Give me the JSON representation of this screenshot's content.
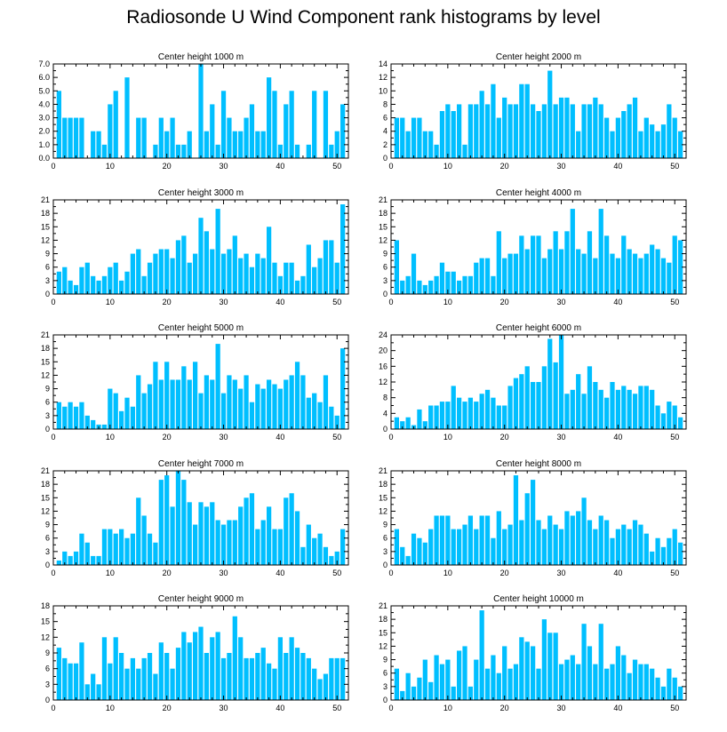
{
  "title": "Radiosonde U Wind Component rank histograms by level",
  "colors": {
    "bar": "#00bfff",
    "axis": "#000000",
    "background": "#ffffff"
  },
  "chart_data": [
    {
      "type": "bar",
      "title": "Center height 1000 m",
      "xlim": [
        0,
        52
      ],
      "ylim": [
        0,
        7
      ],
      "x_ticks": [
        0,
        10,
        20,
        30,
        40,
        50
      ],
      "y_ticks": [
        0,
        1,
        2,
        3,
        4,
        5,
        6,
        7
      ],
      "y_tick_labels": [
        "0.0",
        "1.0",
        "2.0",
        "3.0",
        "4.0",
        "5.0",
        "6.0",
        "7.0"
      ],
      "x": [
        1,
        2,
        3,
        4,
        5,
        6,
        7,
        8,
        9,
        10,
        11,
        12,
        13,
        14,
        15,
        16,
        17,
        18,
        19,
        20,
        21,
        22,
        23,
        24,
        25,
        26,
        27,
        28,
        29,
        30,
        31,
        32,
        33,
        34,
        35,
        36,
        37,
        38,
        39,
        40,
        41,
        42,
        43,
        44,
        45,
        46,
        47,
        48,
        49,
        50,
        51
      ],
      "values": [
        5,
        3,
        3,
        3,
        3,
        0,
        2,
        2,
        1,
        4,
        5,
        0,
        6,
        0,
        3,
        3,
        0,
        1,
        3,
        2,
        3,
        1,
        1,
        2,
        0,
        7,
        2,
        4,
        1,
        5,
        3,
        2,
        2,
        3,
        4,
        2,
        2,
        6,
        5,
        1,
        4,
        5,
        1,
        0,
        1,
        5,
        0,
        5,
        1,
        2,
        4
      ]
    },
    {
      "type": "bar",
      "title": "Center height 2000 m",
      "xlim": [
        0,
        52
      ],
      "ylim": [
        0,
        14
      ],
      "x_ticks": [
        0,
        10,
        20,
        30,
        40,
        50
      ],
      "y_ticks": [
        0,
        2,
        4,
        6,
        8,
        10,
        12,
        14
      ],
      "y_tick_labels": [
        "0",
        "2",
        "4",
        "6",
        "8",
        "10",
        "12",
        "14"
      ],
      "x": [
        1,
        2,
        3,
        4,
        5,
        6,
        7,
        8,
        9,
        10,
        11,
        12,
        13,
        14,
        15,
        16,
        17,
        18,
        19,
        20,
        21,
        22,
        23,
        24,
        25,
        26,
        27,
        28,
        29,
        30,
        31,
        32,
        33,
        34,
        35,
        36,
        37,
        38,
        39,
        40,
        41,
        42,
        43,
        44,
        45,
        46,
        47,
        48,
        49,
        50,
        51
      ],
      "values": [
        6,
        6,
        4,
        6,
        6,
        4,
        4,
        2,
        7,
        8,
        7,
        8,
        2,
        8,
        8,
        10,
        8,
        11,
        6,
        9,
        8,
        8,
        11,
        11,
        8,
        7,
        8,
        13,
        8,
        9,
        9,
        8,
        4,
        8,
        8,
        9,
        8,
        6,
        4,
        6,
        7,
        8,
        9,
        4,
        6,
        5,
        4,
        5,
        8,
        6,
        4
      ]
    },
    {
      "type": "bar",
      "title": "Center height 3000 m",
      "xlim": [
        0,
        52
      ],
      "ylim": [
        0,
        21
      ],
      "x_ticks": [
        0,
        10,
        20,
        30,
        40,
        50
      ],
      "y_ticks": [
        0,
        3,
        6,
        9,
        12,
        15,
        18,
        21
      ],
      "y_tick_labels": [
        "0",
        "3",
        "6",
        "9",
        "12",
        "15",
        "18",
        "21"
      ],
      "x": [
        1,
        2,
        3,
        4,
        5,
        6,
        7,
        8,
        9,
        10,
        11,
        12,
        13,
        14,
        15,
        16,
        17,
        18,
        19,
        20,
        21,
        22,
        23,
        24,
        25,
        26,
        27,
        28,
        29,
        30,
        31,
        32,
        33,
        34,
        35,
        36,
        37,
        38,
        39,
        40,
        41,
        42,
        43,
        44,
        45,
        46,
        47,
        48,
        49,
        50,
        51
      ],
      "values": [
        5,
        6,
        3,
        2,
        6,
        7,
        4,
        3,
        4,
        6,
        7,
        3,
        5,
        9,
        10,
        4,
        7,
        9,
        10,
        10,
        8,
        12,
        13,
        7,
        9,
        17,
        14,
        10,
        19,
        9,
        10,
        13,
        8,
        9,
        6,
        9,
        8,
        15,
        7,
        4,
        7,
        7,
        3,
        4,
        11,
        6,
        8,
        12,
        12,
        7,
        20
      ]
    },
    {
      "type": "bar",
      "title": "Center height 4000 m",
      "xlim": [
        0,
        52
      ],
      "ylim": [
        0,
        21
      ],
      "x_ticks": [
        0,
        10,
        20,
        30,
        40,
        50
      ],
      "y_ticks": [
        0,
        3,
        6,
        9,
        12,
        15,
        18,
        21
      ],
      "y_tick_labels": [
        "0",
        "3",
        "6",
        "9",
        "12",
        "15",
        "18",
        "21"
      ],
      "x": [
        1,
        2,
        3,
        4,
        5,
        6,
        7,
        8,
        9,
        10,
        11,
        12,
        13,
        14,
        15,
        16,
        17,
        18,
        19,
        20,
        21,
        22,
        23,
        24,
        25,
        26,
        27,
        28,
        29,
        30,
        31,
        32,
        33,
        34,
        35,
        36,
        37,
        38,
        39,
        40,
        41,
        42,
        43,
        44,
        45,
        46,
        47,
        48,
        49,
        50,
        51
      ],
      "values": [
        12,
        3,
        4,
        9,
        3,
        2,
        3,
        4,
        7,
        5,
        5,
        3,
        4,
        4,
        7,
        8,
        8,
        4,
        14,
        8,
        9,
        9,
        13,
        10,
        13,
        13,
        8,
        10,
        14,
        10,
        14,
        19,
        10,
        9,
        14,
        8,
        19,
        13,
        9,
        8,
        13,
        10,
        9,
        8,
        9,
        11,
        10,
        8,
        7,
        13,
        12
      ]
    },
    {
      "type": "bar",
      "title": "Center height 5000 m",
      "xlim": [
        0,
        52
      ],
      "ylim": [
        0,
        21
      ],
      "x_ticks": [
        0,
        10,
        20,
        30,
        40,
        50
      ],
      "y_ticks": [
        0,
        3,
        6,
        9,
        12,
        15,
        18,
        21
      ],
      "y_tick_labels": [
        "0",
        "3",
        "6",
        "9",
        "12",
        "15",
        "18",
        "21"
      ],
      "x": [
        1,
        2,
        3,
        4,
        5,
        6,
        7,
        8,
        9,
        10,
        11,
        12,
        13,
        14,
        15,
        16,
        17,
        18,
        19,
        20,
        21,
        22,
        23,
        24,
        25,
        26,
        27,
        28,
        29,
        30,
        31,
        32,
        33,
        34,
        35,
        36,
        37,
        38,
        39,
        40,
        41,
        42,
        43,
        44,
        45,
        46,
        47,
        48,
        49,
        50,
        51
      ],
      "values": [
        6,
        5,
        6,
        5,
        6,
        3,
        2,
        1,
        1,
        9,
        8,
        4,
        7,
        5,
        12,
        8,
        10,
        15,
        11,
        15,
        11,
        11,
        14,
        11,
        15,
        8,
        12,
        11,
        19,
        8,
        12,
        11,
        9,
        12,
        6,
        10,
        9,
        11,
        10,
        9,
        11,
        12,
        15,
        12,
        7,
        8,
        6,
        12,
        5,
        3,
        18
      ]
    },
    {
      "type": "bar",
      "title": "Center height 6000 m",
      "xlim": [
        0,
        52
      ],
      "ylim": [
        0,
        24
      ],
      "x_ticks": [
        0,
        10,
        20,
        30,
        40,
        50
      ],
      "y_ticks": [
        0,
        4,
        8,
        12,
        16,
        20,
        24
      ],
      "y_tick_labels": [
        "0",
        "4",
        "8",
        "12",
        "16",
        "20",
        "24"
      ],
      "x": [
        1,
        2,
        3,
        4,
        5,
        6,
        7,
        8,
        9,
        10,
        11,
        12,
        13,
        14,
        15,
        16,
        17,
        18,
        19,
        20,
        21,
        22,
        23,
        24,
        25,
        26,
        27,
        28,
        29,
        30,
        31,
        32,
        33,
        34,
        35,
        36,
        37,
        38,
        39,
        40,
        41,
        42,
        43,
        44,
        45,
        46,
        47,
        48,
        49,
        50,
        51
      ],
      "values": [
        3,
        2,
        3,
        1,
        5,
        2,
        6,
        6,
        7,
        7,
        11,
        8,
        7,
        8,
        7,
        9,
        10,
        8,
        6,
        6,
        11,
        13,
        14,
        16,
        12,
        12,
        16,
        23,
        17,
        24,
        9,
        10,
        14,
        9,
        16,
        12,
        10,
        8,
        12,
        10,
        11,
        10,
        9,
        11,
        11,
        10,
        6,
        4,
        7,
        6,
        3
      ]
    },
    {
      "type": "bar",
      "title": "Center height 7000 m",
      "xlim": [
        0,
        52
      ],
      "ylim": [
        0,
        21
      ],
      "x_ticks": [
        0,
        10,
        20,
        30,
        40,
        50
      ],
      "y_ticks": [
        0,
        3,
        6,
        9,
        12,
        15,
        18,
        21
      ],
      "y_tick_labels": [
        "0",
        "3",
        "6",
        "9",
        "12",
        "15",
        "18",
        "21"
      ],
      "x": [
        1,
        2,
        3,
        4,
        5,
        6,
        7,
        8,
        9,
        10,
        11,
        12,
        13,
        14,
        15,
        16,
        17,
        18,
        19,
        20,
        21,
        22,
        23,
        24,
        25,
        26,
        27,
        28,
        29,
        30,
        31,
        32,
        33,
        34,
        35,
        36,
        37,
        38,
        39,
        40,
        41,
        42,
        43,
        44,
        45,
        46,
        47,
        48,
        49,
        50,
        51
      ],
      "values": [
        1,
        3,
        2,
        3,
        7,
        5,
        2,
        2,
        8,
        8,
        7,
        8,
        6,
        7,
        15,
        11,
        7,
        5,
        19,
        20,
        13,
        21,
        19,
        14,
        9,
        14,
        13,
        14,
        10,
        9,
        10,
        10,
        13,
        15,
        16,
        8,
        10,
        13,
        8,
        8,
        15,
        16,
        12,
        4,
        9,
        6,
        7,
        4,
        2,
        3,
        8
      ]
    },
    {
      "type": "bar",
      "title": "Center height 8000 m",
      "xlim": [
        0,
        52
      ],
      "ylim": [
        0,
        21
      ],
      "x_ticks": [
        0,
        10,
        20,
        30,
        40,
        50
      ],
      "y_ticks": [
        0,
        3,
        6,
        9,
        12,
        15,
        18,
        21
      ],
      "y_tick_labels": [
        "0",
        "3",
        "6",
        "9",
        "12",
        "15",
        "18",
        "21"
      ],
      "x": [
        1,
        2,
        3,
        4,
        5,
        6,
        7,
        8,
        9,
        10,
        11,
        12,
        13,
        14,
        15,
        16,
        17,
        18,
        19,
        20,
        21,
        22,
        23,
        24,
        25,
        26,
        27,
        28,
        29,
        30,
        31,
        32,
        33,
        34,
        35,
        36,
        37,
        38,
        39,
        40,
        41,
        42,
        43,
        44,
        45,
        46,
        47,
        48,
        49,
        50,
        51
      ],
      "values": [
        8,
        4,
        2,
        7,
        6,
        5,
        8,
        11,
        11,
        11,
        8,
        8,
        9,
        11,
        8,
        11,
        11,
        6,
        12,
        8,
        9,
        20,
        10,
        16,
        19,
        10,
        8,
        11,
        9,
        8,
        12,
        11,
        12,
        15,
        10,
        8,
        11,
        10,
        6,
        8,
        9,
        8,
        10,
        9,
        7,
        3,
        6,
        4,
        6,
        8,
        5
      ]
    },
    {
      "type": "bar",
      "title": "Center height 9000 m",
      "xlim": [
        0,
        52
      ],
      "ylim": [
        0,
        18
      ],
      "x_ticks": [
        0,
        10,
        20,
        30,
        40,
        50
      ],
      "y_ticks": [
        0,
        3,
        6,
        9,
        12,
        15,
        18
      ],
      "y_tick_labels": [
        "0",
        "3",
        "6",
        "9",
        "12",
        "15",
        "18"
      ],
      "x": [
        1,
        2,
        3,
        4,
        5,
        6,
        7,
        8,
        9,
        10,
        11,
        12,
        13,
        14,
        15,
        16,
        17,
        18,
        19,
        20,
        21,
        22,
        23,
        24,
        25,
        26,
        27,
        28,
        29,
        30,
        31,
        32,
        33,
        34,
        35,
        36,
        37,
        38,
        39,
        40,
        41,
        42,
        43,
        44,
        45,
        46,
        47,
        48,
        49,
        50,
        51
      ],
      "values": [
        10,
        8,
        7,
        7,
        11,
        3,
        5,
        3,
        12,
        7,
        12,
        9,
        6,
        8,
        6,
        8,
        9,
        5,
        11,
        9,
        6,
        10,
        13,
        11,
        13,
        14,
        9,
        12,
        13,
        8,
        9,
        16,
        12,
        8,
        8,
        9,
        10,
        7,
        6,
        12,
        9,
        12,
        10,
        9,
        8,
        6,
        4,
        5,
        8,
        8,
        8
      ]
    },
    {
      "type": "bar",
      "title": "Center height 10000 m",
      "xlim": [
        0,
        52
      ],
      "ylim": [
        0,
        21
      ],
      "x_ticks": [
        0,
        10,
        20,
        30,
        40,
        50
      ],
      "y_ticks": [
        0,
        3,
        6,
        9,
        12,
        15,
        18,
        21
      ],
      "y_tick_labels": [
        "0",
        "3",
        "6",
        "9",
        "12",
        "15",
        "18",
        "21"
      ],
      "x": [
        1,
        2,
        3,
        4,
        5,
        6,
        7,
        8,
        9,
        10,
        11,
        12,
        13,
        14,
        15,
        16,
        17,
        18,
        19,
        20,
        21,
        22,
        23,
        24,
        25,
        26,
        27,
        28,
        29,
        30,
        31,
        32,
        33,
        34,
        35,
        36,
        37,
        38,
        39,
        40,
        41,
        42,
        43,
        44,
        45,
        46,
        47,
        48,
        49,
        50,
        51
      ],
      "values": [
        7,
        2,
        6,
        3,
        5,
        9,
        4,
        10,
        8,
        9,
        3,
        11,
        12,
        3,
        9,
        20,
        7,
        10,
        6,
        12,
        7,
        8,
        14,
        13,
        12,
        7,
        18,
        15,
        15,
        8,
        9,
        10,
        8,
        17,
        12,
        8,
        17,
        7,
        8,
        12,
        10,
        6,
        9,
        8,
        8,
        7,
        5,
        3,
        7,
        5,
        3
      ]
    }
  ]
}
